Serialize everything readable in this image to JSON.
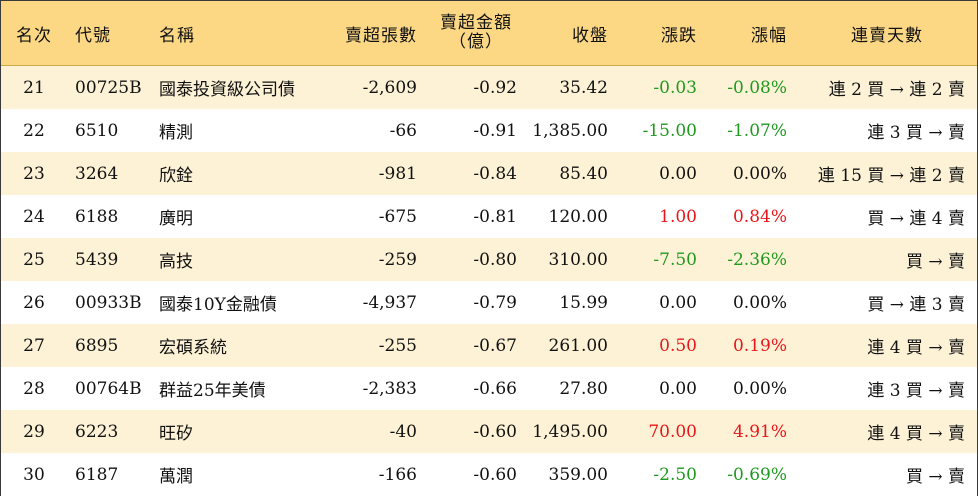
{
  "headers": {
    "rank": "名次",
    "code": "代號",
    "name": "名稱",
    "net_shares": "賣超張數",
    "net_amount_line1": "賣超金額",
    "net_amount_line2": "（億）",
    "close": "收盤",
    "change": "漲跌",
    "pct": "漲幅",
    "streak": "連賣天數"
  },
  "rows": [
    {
      "rank": "21",
      "code": "00725B",
      "name": "國泰投資級公司債",
      "net_shares": "-2,609",
      "net_amount": "-0.92",
      "close": "35.42",
      "change": "-0.03",
      "pct": "-0.08%",
      "streak": "連 2 買 → 連 2 賣",
      "trend": "neg"
    },
    {
      "rank": "22",
      "code": "6510",
      "name": "精測",
      "net_shares": "-66",
      "net_amount": "-0.91",
      "close": "1,385.00",
      "change": "-15.00",
      "pct": "-1.07%",
      "streak": "連 3 買 → 賣",
      "trend": "neg"
    },
    {
      "rank": "23",
      "code": "3264",
      "name": "欣銓",
      "net_shares": "-981",
      "net_amount": "-0.84",
      "close": "85.40",
      "change": "0.00",
      "pct": "0.00%",
      "streak": "連 15 買 → 連 2 賣",
      "trend": "zero"
    },
    {
      "rank": "24",
      "code": "6188",
      "name": "廣明",
      "net_shares": "-675",
      "net_amount": "-0.81",
      "close": "120.00",
      "change": "1.00",
      "pct": "0.84%",
      "streak": "買 → 連 4 賣",
      "trend": "pos"
    },
    {
      "rank": "25",
      "code": "5439",
      "name": "高技",
      "net_shares": "-259",
      "net_amount": "-0.80",
      "close": "310.00",
      "change": "-7.50",
      "pct": "-2.36%",
      "streak": "買 → 賣",
      "trend": "neg"
    },
    {
      "rank": "26",
      "code": "00933B",
      "name": "國泰10Y金融債",
      "net_shares": "-4,937",
      "net_amount": "-0.79",
      "close": "15.99",
      "change": "0.00",
      "pct": "0.00%",
      "streak": "買 → 連 3 賣",
      "trend": "zero"
    },
    {
      "rank": "27",
      "code": "6895",
      "name": "宏碩系統",
      "net_shares": "-255",
      "net_amount": "-0.67",
      "close": "261.00",
      "change": "0.50",
      "pct": "0.19%",
      "streak": "連 4 買 → 賣",
      "trend": "pos"
    },
    {
      "rank": "28",
      "code": "00764B",
      "name": "群益25年美債",
      "net_shares": "-2,383",
      "net_amount": "-0.66",
      "close": "27.80",
      "change": "0.00",
      "pct": "0.00%",
      "streak": "連 3 買 → 賣",
      "trend": "zero"
    },
    {
      "rank": "29",
      "code": "6223",
      "name": "旺矽",
      "net_shares": "-40",
      "net_amount": "-0.60",
      "close": "1,495.00",
      "change": "70.00",
      "pct": "4.91%",
      "streak": "連 4 買 → 賣",
      "trend": "pos"
    },
    {
      "rank": "30",
      "code": "6187",
      "name": "萬潤",
      "net_shares": "-166",
      "net_amount": "-0.60",
      "close": "359.00",
      "change": "-2.50",
      "pct": "-0.69%",
      "streak": "買 → 賣",
      "trend": "neg"
    }
  ],
  "colors": {
    "header_bg": "#fcd784",
    "odd_row_bg": "#fdf2d6",
    "even_row_bg": "#ffffff",
    "up": "#e8161a",
    "down": "#1f9a1f"
  }
}
